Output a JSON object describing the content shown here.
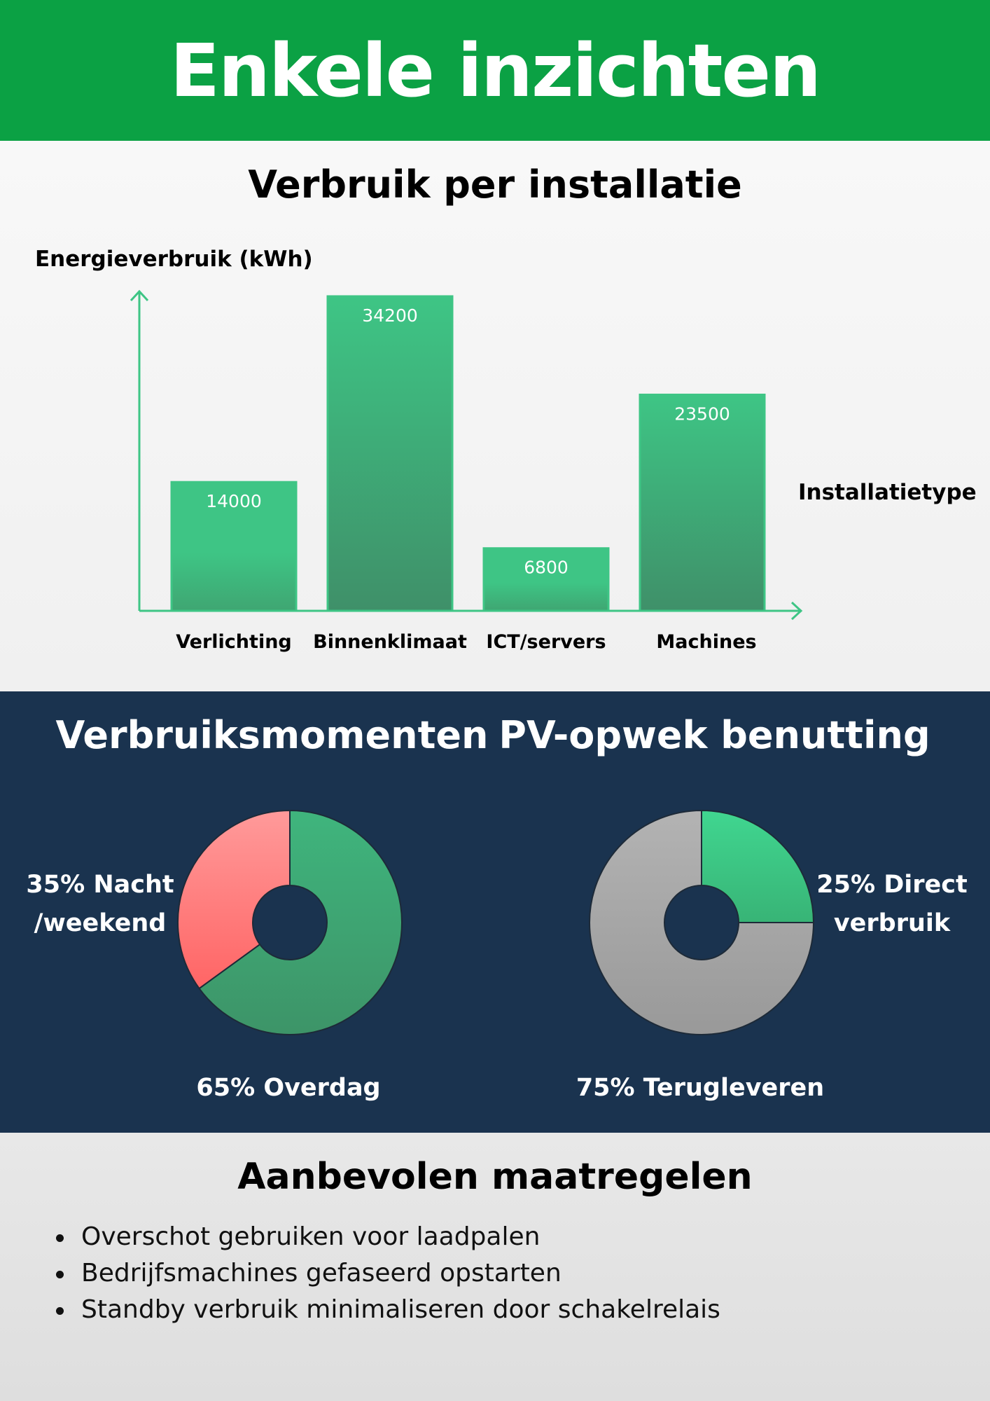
{
  "header": {
    "title": "Enkele inzichten"
  },
  "bar_section": {
    "title": "Verbruik per installatie"
  },
  "pie_left": {
    "title": "Verbruiksmomenten",
    "labels": {
      "red_line1": "35% Nacht",
      "red_line2": "/weekend",
      "green": "65% Overdag"
    }
  },
  "pie_right": {
    "title": "PV-opwek benutting",
    "labels": {
      "green_line1": "25% Direct",
      "green_line2": "verbruik",
      "grey": "75% Terugleveren"
    }
  },
  "recommendations": {
    "title": "Aanbevolen maatregelen",
    "items": [
      "Overschot gebruiken voor laadpalen",
      "Bedrijfsmachines gefaseerd opstarten",
      "Standby verbruik minimaliseren door schakelrelais"
    ]
  },
  "colors": {
    "header_green": "#0ba144",
    "bar_light": "#3ec585",
    "bar_dark": "#3f9a6b",
    "navy": "#1a334f",
    "pie_red": "#ff7a7a",
    "pie_green": "#3aae78",
    "pie_grey": "#a8a8a8",
    "pie_light_green": "#3ecf8a"
  },
  "chart_data": [
    {
      "type": "bar",
      "title": "Verbruik per installatie",
      "ylabel": "Energieverbruik (kWh)",
      "xlabel": "Installatietype",
      "categories": [
        "Verlichting",
        "Binnenklimaat",
        "ICT/servers",
        "Machines"
      ],
      "values": [
        14000,
        34200,
        6800,
        23500
      ],
      "value_labels": [
        "14000",
        "34200",
        "6800",
        "23500"
      ],
      "ylim": [
        0,
        34200
      ],
      "grid": false
    },
    {
      "type": "pie",
      "title": "Verbruiksmomenten",
      "donut": true,
      "slices": [
        {
          "label": "35% Nacht /weekend",
          "value": 35,
          "color": "#ff7a7a"
        },
        {
          "label": "65% Overdag",
          "value": 65,
          "color": "#3aae78"
        }
      ]
    },
    {
      "type": "pie",
      "title": "PV-opwek benutting",
      "donut": true,
      "slices": [
        {
          "label": "25% Direct verbruik",
          "value": 25,
          "color": "#3ecf8a"
        },
        {
          "label": "75% Terugleveren",
          "value": 75,
          "color": "#a8a8a8"
        }
      ]
    }
  ]
}
